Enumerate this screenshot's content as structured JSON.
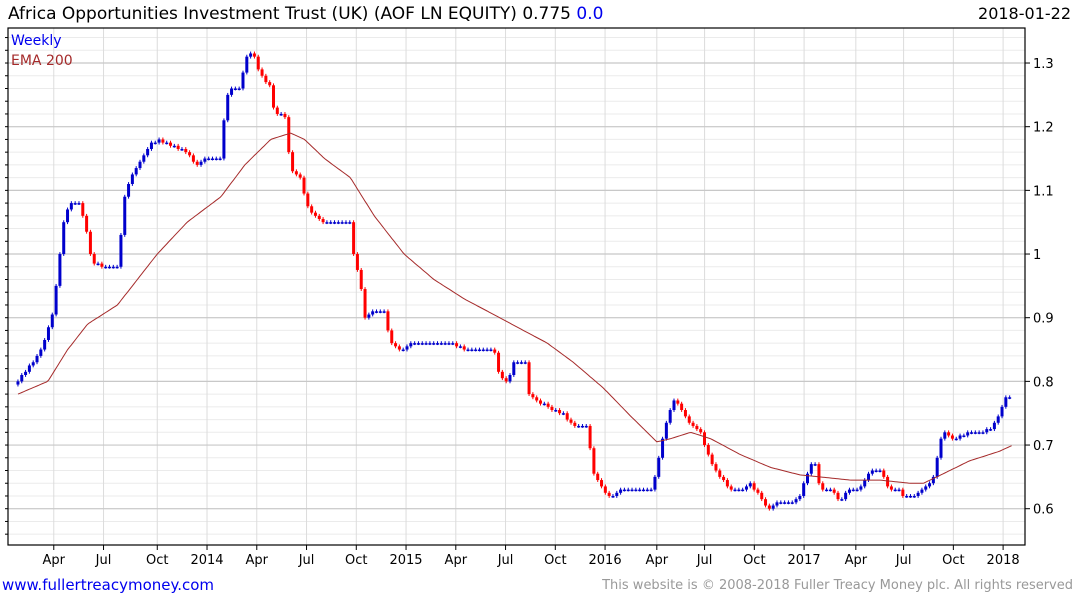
{
  "header": {
    "title": "Africa Opportunities Investment Trust (UK)  (AOF LN EQUITY) 0.775",
    "change": "0.0",
    "date": "2018-01-22"
  },
  "footer": {
    "link": "www.fullertreacymoney.com",
    "copyright": "This website is © 2008-2018 Fuller Treacy Money plc. All rights reserved"
  },
  "colors": {
    "up": "#0000cc",
    "down": "#ff0000",
    "ema": "#a52a2a",
    "grid": "#c8c8c8",
    "minor": "#ebebeb"
  },
  "chart_data": {
    "type": "candlestick",
    "title": "Africa Opportunities Investment Trust (UK) (AOF LN EQUITY)",
    "legend": [
      "Weekly",
      "EMA 200"
    ],
    "legend_placement": "top-left",
    "ylim": [
      0.543,
      1.355
    ],
    "xlim": [
      2013.0,
      2018.11
    ],
    "y_ticks": [
      0.6,
      0.7,
      0.8,
      0.9,
      1,
      1.1,
      1.2,
      1.3
    ],
    "x_ticks": [
      {
        "label": "Apr",
        "x": 2013.23
      },
      {
        "label": "Jul",
        "x": 2013.48
      },
      {
        "label": "Oct",
        "x": 2013.75
      },
      {
        "label": "2014",
        "x": 2014.0
      },
      {
        "label": "Apr",
        "x": 2014.25
      },
      {
        "label": "Jul",
        "x": 2014.5
      },
      {
        "label": "Oct",
        "x": 2014.75
      },
      {
        "label": "2015",
        "x": 2015.0
      },
      {
        "label": "Apr",
        "x": 2015.25
      },
      {
        "label": "Jul",
        "x": 2015.5
      },
      {
        "label": "Oct",
        "x": 2015.75
      },
      {
        "label": "2016",
        "x": 2016.0
      },
      {
        "label": "Apr",
        "x": 2016.26
      },
      {
        "label": "Jul",
        "x": 2016.5
      },
      {
        "label": "Oct",
        "x": 2016.75
      },
      {
        "label": "2017",
        "x": 2017.0
      },
      {
        "label": "Apr",
        "x": 2017.26
      },
      {
        "label": "Jul",
        "x": 2017.5
      },
      {
        "label": "Oct",
        "x": 2017.75
      },
      {
        "label": "2018",
        "x": 2018.0
      }
    ],
    "weekly_close_anchors": [
      [
        2013.05,
        0.8
      ],
      [
        2013.1,
        0.82
      ],
      [
        2013.15,
        0.84
      ],
      [
        2013.18,
        0.86
      ],
      [
        2013.22,
        0.9
      ],
      [
        2013.25,
        0.97
      ],
      [
        2013.28,
        1.05
      ],
      [
        2013.31,
        1.08
      ],
      [
        2013.36,
        1.08
      ],
      [
        2013.4,
        1.03
      ],
      [
        2013.42,
        0.99
      ],
      [
        2013.47,
        0.98
      ],
      [
        2013.55,
        0.98
      ],
      [
        2013.59,
        1.1
      ],
      [
        2013.62,
        1.12
      ],
      [
        2013.67,
        1.15
      ],
      [
        2013.71,
        1.17
      ],
      [
        2013.75,
        1.18
      ],
      [
        2013.82,
        1.17
      ],
      [
        2013.9,
        1.16
      ],
      [
        2013.95,
        1.14
      ],
      [
        2014.0,
        1.15
      ],
      [
        2014.07,
        1.15
      ],
      [
        2014.08,
        1.2
      ],
      [
        2014.11,
        1.26
      ],
      [
        2014.17,
        1.26
      ],
      [
        2014.19,
        1.31
      ],
      [
        2014.23,
        1.32
      ],
      [
        2014.25,
        1.29
      ],
      [
        2014.28,
        1.28
      ],
      [
        2014.32,
        1.26
      ],
      [
        2014.34,
        1.22
      ],
      [
        2014.39,
        1.22
      ],
      [
        2014.42,
        1.13
      ],
      [
        2014.47,
        1.12
      ],
      [
        2014.5,
        1.08
      ],
      [
        2014.54,
        1.06
      ],
      [
        2014.59,
        1.05
      ],
      [
        2014.72,
        1.05
      ],
      [
        2014.74,
        0.99
      ],
      [
        2014.77,
        0.96
      ],
      [
        2014.79,
        0.9
      ],
      [
        2014.84,
        0.91
      ],
      [
        2014.89,
        0.91
      ],
      [
        2014.92,
        0.86
      ],
      [
        2014.97,
        0.85
      ],
      [
        2015.04,
        0.86
      ],
      [
        2015.14,
        0.86
      ],
      [
        2015.24,
        0.86
      ],
      [
        2015.29,
        0.85
      ],
      [
        2015.34,
        0.85
      ],
      [
        2015.44,
        0.85
      ],
      [
        2015.47,
        0.81
      ],
      [
        2015.51,
        0.8
      ],
      [
        2015.54,
        0.83
      ],
      [
        2015.6,
        0.83
      ],
      [
        2015.61,
        0.78
      ],
      [
        2015.66,
        0.77
      ],
      [
        2015.71,
        0.76
      ],
      [
        2015.79,
        0.75
      ],
      [
        2015.84,
        0.73
      ],
      [
        2015.91,
        0.73
      ],
      [
        2015.94,
        0.66
      ],
      [
        2015.97,
        0.64
      ],
      [
        2016.01,
        0.62
      ],
      [
        2016.04,
        0.62
      ],
      [
        2016.08,
        0.63
      ],
      [
        2016.18,
        0.63
      ],
      [
        2016.23,
        0.63
      ],
      [
        2016.26,
        0.66
      ],
      [
        2016.28,
        0.7
      ],
      [
        2016.32,
        0.75
      ],
      [
        2016.35,
        0.77
      ],
      [
        2016.38,
        0.76
      ],
      [
        2016.43,
        0.73
      ],
      [
        2016.48,
        0.72
      ],
      [
        2016.51,
        0.69
      ],
      [
        2016.54,
        0.67
      ],
      [
        2016.58,
        0.65
      ],
      [
        2016.63,
        0.63
      ],
      [
        2016.68,
        0.63
      ],
      [
        2016.73,
        0.64
      ],
      [
        2016.78,
        0.62
      ],
      [
        2016.82,
        0.6
      ],
      [
        2016.86,
        0.61
      ],
      [
        2016.93,
        0.61
      ],
      [
        2016.98,
        0.62
      ],
      [
        2017.02,
        0.66
      ],
      [
        2017.05,
        0.68
      ],
      [
        2017.08,
        0.63
      ],
      [
        2017.14,
        0.63
      ],
      [
        2017.18,
        0.61
      ],
      [
        2017.22,
        0.63
      ],
      [
        2017.28,
        0.63
      ],
      [
        2017.33,
        0.66
      ],
      [
        2017.38,
        0.66
      ],
      [
        2017.43,
        0.63
      ],
      [
        2017.48,
        0.63
      ],
      [
        2017.5,
        0.62
      ],
      [
        2017.55,
        0.62
      ],
      [
        2017.6,
        0.63
      ],
      [
        2017.65,
        0.65
      ],
      [
        2017.68,
        0.7
      ],
      [
        2017.7,
        0.72
      ],
      [
        2017.75,
        0.71
      ],
      [
        2017.83,
        0.72
      ],
      [
        2017.9,
        0.72
      ],
      [
        2017.95,
        0.73
      ],
      [
        2017.98,
        0.75
      ],
      [
        2018.01,
        0.775
      ],
      [
        2018.04,
        0.775
      ]
    ],
    "ema200": [
      [
        2013.05,
        0.78
      ],
      [
        2013.2,
        0.8
      ],
      [
        2013.3,
        0.85
      ],
      [
        2013.4,
        0.89
      ],
      [
        2013.55,
        0.92
      ],
      [
        2013.75,
        1.0
      ],
      [
        2013.9,
        1.05
      ],
      [
        2014.07,
        1.09
      ],
      [
        2014.19,
        1.14
      ],
      [
        2014.32,
        1.18
      ],
      [
        2014.42,
        1.19
      ],
      [
        2014.49,
        1.18
      ],
      [
        2014.59,
        1.15
      ],
      [
        2014.72,
        1.12
      ],
      [
        2014.84,
        1.06
      ],
      [
        2014.99,
        1.0
      ],
      [
        2015.14,
        0.96
      ],
      [
        2015.29,
        0.93
      ],
      [
        2015.44,
        0.905
      ],
      [
        2015.59,
        0.88
      ],
      [
        2015.71,
        0.86
      ],
      [
        2015.84,
        0.83
      ],
      [
        2015.99,
        0.79
      ],
      [
        2016.13,
        0.745
      ],
      [
        2016.26,
        0.705
      ],
      [
        2016.33,
        0.71
      ],
      [
        2016.43,
        0.72
      ],
      [
        2016.53,
        0.71
      ],
      [
        2016.68,
        0.685
      ],
      [
        2016.83,
        0.665
      ],
      [
        2016.98,
        0.653
      ],
      [
        2017.08,
        0.65
      ],
      [
        2017.23,
        0.645
      ],
      [
        2017.38,
        0.645
      ],
      [
        2017.53,
        0.64
      ],
      [
        2017.6,
        0.64
      ],
      [
        2017.7,
        0.655
      ],
      [
        2017.83,
        0.675
      ],
      [
        2017.98,
        0.69
      ],
      [
        2018.05,
        0.7
      ]
    ]
  }
}
